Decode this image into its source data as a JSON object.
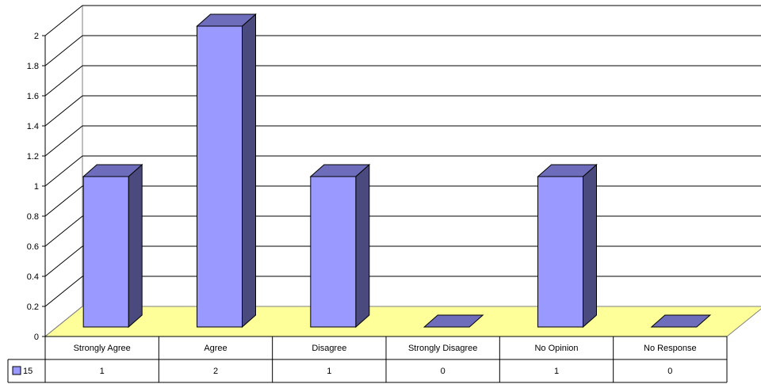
{
  "chart_data": {
    "type": "bar",
    "categories": [
      "Strongly Agree",
      "Agree",
      "Disagree",
      "Strongly Disagree",
      "No Opinion",
      "No Response"
    ],
    "series": [
      {
        "name": "15",
        "values": [
          1,
          2,
          1,
          0,
          1,
          0
        ]
      }
    ],
    "ylim": [
      0,
      2
    ],
    "yticks": [
      "0",
      "0.2",
      "0.4",
      "0.6",
      "0.8",
      "1",
      "1.2",
      "1.4",
      "1.6",
      "1.8",
      "2"
    ],
    "grid": true,
    "legend_placement": "data-table",
    "style": "3d-column-with-data-table",
    "colors": {
      "bar_front": "#9999FF",
      "bar_side": "#4B4A7E",
      "bar_top": "#6E6DBB",
      "floor": "#FFFF99",
      "gridline": "#000000"
    }
  }
}
